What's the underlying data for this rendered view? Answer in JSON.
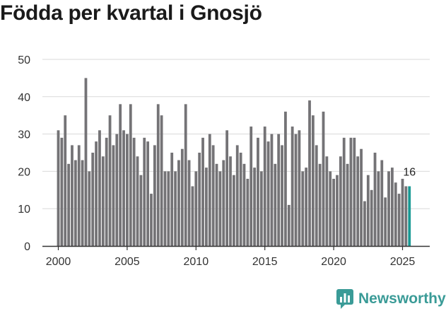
{
  "title": "Födda per kvartal i Gnosjö",
  "brand": {
    "name": "Newsworthy",
    "color": "#3a9b97"
  },
  "colors": {
    "bar": "#747376",
    "highlight": "#1a9a95",
    "grid": "#d9d9d9",
    "axis": "#333333",
    "tick_text": "#333333"
  },
  "chart_data": {
    "type": "bar",
    "title": "Födda per kvartal i Gnosjö",
    "xlabel": "",
    "ylabel": "",
    "ylim": [
      0,
      50
    ],
    "yticks": [
      0,
      10,
      20,
      30,
      40,
      50
    ],
    "xticks": [
      "2000",
      "2005",
      "2010",
      "2015",
      "2020",
      "2025"
    ],
    "grid": true,
    "start": "2000Q1",
    "values": [
      31,
      29,
      35,
      22,
      27,
      23,
      27,
      23,
      45,
      20,
      25,
      28,
      31,
      24,
      29,
      35,
      27,
      30,
      38,
      31,
      30,
      38,
      29,
      24,
      19,
      29,
      28,
      14,
      27,
      38,
      35,
      20,
      20,
      25,
      20,
      23,
      26,
      38,
      23,
      16,
      20,
      25,
      29,
      21,
      30,
      27,
      22,
      20,
      23,
      31,
      24,
      19,
      27,
      25,
      22,
      18,
      32,
      21,
      29,
      20,
      32,
      28,
      30,
      22,
      30,
      27,
      36,
      11,
      32,
      30,
      31,
      20,
      21,
      39,
      35,
      27,
      22,
      36,
      24,
      20,
      18,
      19,
      24,
      29,
      22,
      29,
      29,
      24,
      26,
      12,
      19,
      15,
      25,
      20,
      23,
      13,
      20,
      21,
      17,
      14,
      18,
      16,
      16
    ],
    "highlight_last": 1,
    "last_label": "16"
  }
}
